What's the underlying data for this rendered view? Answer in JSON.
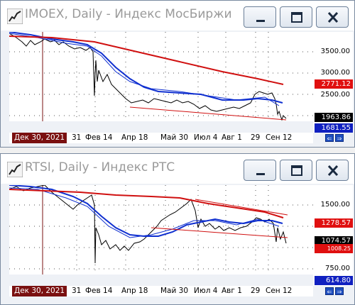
{
  "windows": [
    {
      "title": "IMOEX, Daily - Индекс МосБиржи",
      "y_labels": [
        "3500.00",
        "3000.00",
        "2500.00",
        "1500.00"
      ],
      "badges": [
        {
          "text": "2771.12",
          "color": "#e01010"
        },
        {
          "text": "1963.86",
          "color": "#000000"
        },
        {
          "text": "1681.55",
          "color": "#1020c0"
        }
      ],
      "x_labels": [
        "31",
        "Фев 14",
        "Апр 18",
        "Май 30",
        "Июл 4",
        "Авг 1",
        "29",
        "Сен 12"
      ],
      "current_date": "Дек 30, 2021"
    },
    {
      "title": "RTSI, Daily - Индекс РТС",
      "y_labels": [
        "1500.00",
        "750.00"
      ],
      "badges": [
        {
          "text": "1278.57",
          "color": "#e01010"
        },
        {
          "text": "1074.57",
          "color": "#000000"
        },
        {
          "text": "1008.25",
          "color": "#e01010"
        },
        {
          "text": "614.80",
          "color": "#1020c0"
        }
      ],
      "x_labels": [
        "31",
        "Фев 14",
        "Апр 18",
        "Май 30",
        "Июл 4",
        "Авг 1",
        "29",
        "Сен 12"
      ],
      "current_date": "Дек 30, 2021"
    }
  ],
  "icons": {
    "minimize": "minimize-icon",
    "restore": "restore-icon",
    "close": "close-icon",
    "nav": "scroll-arrows-icon"
  },
  "colors": {
    "price": "#000000",
    "ma_long": "#d01010",
    "ma_mid": "#1030d0",
    "trend": "#d01010",
    "cursor": "#7a1010"
  }
}
